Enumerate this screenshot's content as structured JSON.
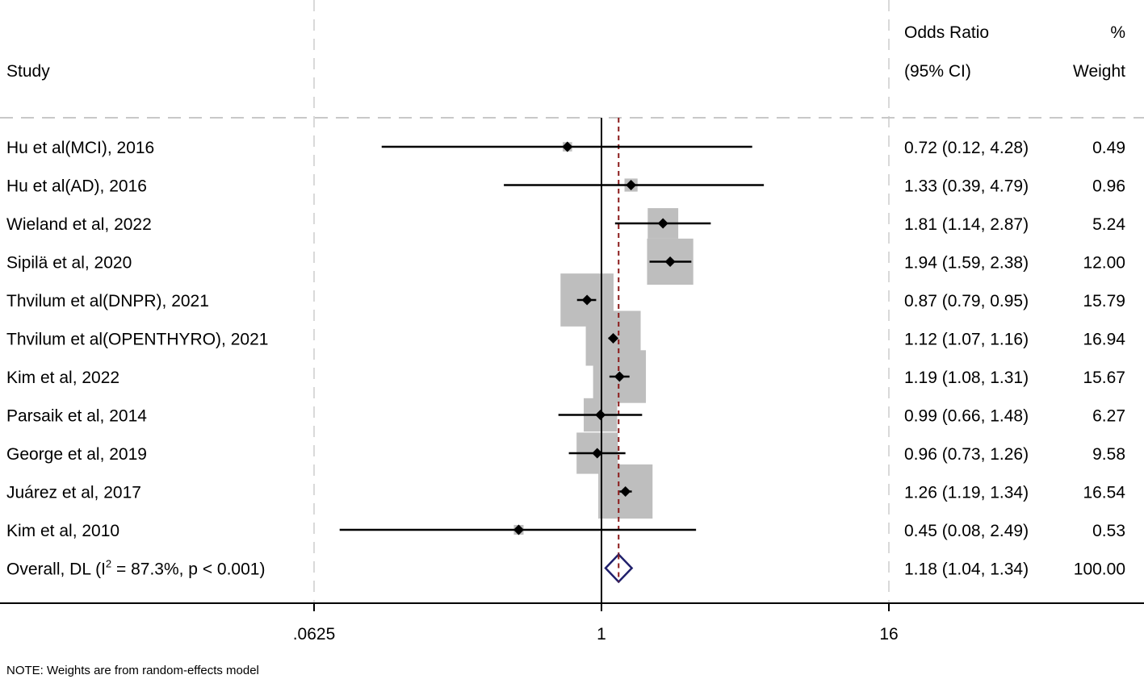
{
  "chart_data": {
    "type": "forest",
    "headers": {
      "study": "Study",
      "or_top": "Odds Ratio",
      "or_bottom": "(95% CI)",
      "weight_top": "%",
      "weight_bottom": "Weight"
    },
    "studies": [
      {
        "label": "Hu et al(MCI), 2016",
        "or": 0.72,
        "lo": 0.12,
        "hi": 4.28,
        "ci_text": "0.72 (0.12, 4.28)",
        "weight": 0.49,
        "weight_text": "0.49"
      },
      {
        "label": "Hu et al(AD), 2016",
        "or": 1.33,
        "lo": 0.39,
        "hi": 4.79,
        "ci_text": "1.33 (0.39, 4.79)",
        "weight": 0.96,
        "weight_text": "0.96"
      },
      {
        "label": "Wieland et al, 2022",
        "or": 1.81,
        "lo": 1.14,
        "hi": 2.87,
        "ci_text": "1.81 (1.14, 2.87)",
        "weight": 5.24,
        "weight_text": "5.24"
      },
      {
        "label": "Sipilä et al, 2020",
        "or": 1.94,
        "lo": 1.59,
        "hi": 2.38,
        "ci_text": "1.94 (1.59, 2.38)",
        "weight": 12.0,
        "weight_text": "12.00"
      },
      {
        "label": "Thvilum et al(DNPR), 2021",
        "or": 0.87,
        "lo": 0.79,
        "hi": 0.95,
        "ci_text": "0.87 (0.79, 0.95)",
        "weight": 15.79,
        "weight_text": "15.79"
      },
      {
        "label": "Thvilum et al(OPENTHYRO), 2021",
        "or": 1.12,
        "lo": 1.07,
        "hi": 1.16,
        "ci_text": "1.12 (1.07, 1.16)",
        "weight": 16.94,
        "weight_text": "16.94"
      },
      {
        "label": "Kim et al, 2022",
        "or": 1.19,
        "lo": 1.08,
        "hi": 1.31,
        "ci_text": "1.19 (1.08, 1.31)",
        "weight": 15.67,
        "weight_text": "15.67"
      },
      {
        "label": "Parsaik et al, 2014",
        "or": 0.99,
        "lo": 0.66,
        "hi": 1.48,
        "ci_text": "0.99 (0.66, 1.48)",
        "weight": 6.27,
        "weight_text": "6.27"
      },
      {
        "label": "George et al, 2019",
        "or": 0.96,
        "lo": 0.73,
        "hi": 1.26,
        "ci_text": "0.96 (0.73, 1.26)",
        "weight": 9.58,
        "weight_text": "9.58"
      },
      {
        "label": "Juárez et al, 2017",
        "or": 1.26,
        "lo": 1.19,
        "hi": 1.34,
        "ci_text": "1.26 (1.19, 1.34)",
        "weight": 16.54,
        "weight_text": "16.54"
      },
      {
        "label": "Kim et al, 2010",
        "or": 0.45,
        "lo": 0.08,
        "hi": 2.49,
        "ci_text": "0.45 (0.08, 2.49)",
        "weight": 0.53,
        "weight_text": "0.53"
      }
    ],
    "overall": {
      "label_prefix": "Overall, DL (I",
      "label_sup": "2",
      "label_suffix": " = 87.3%, p < 0.001)",
      "or": 1.18,
      "lo": 1.04,
      "hi": 1.34,
      "ci_text": "1.18 (1.04, 1.34)",
      "weight_text": "100.00"
    },
    "x_axis": {
      "scale": "log",
      "ticks": [
        0.0625,
        1,
        16
      ],
      "tick_labels": [
        ".0625",
        "1",
        "16"
      ],
      "xlim": [
        0.0625,
        16
      ]
    },
    "note": "NOTE: Weights are from random-effects model",
    "colors": {
      "marker": "#000000",
      "box": "#bebebe",
      "overall_diamond": "#1f1f6b",
      "overall_line": "#8b1a1a",
      "gridline": "#d9d9d9"
    }
  }
}
